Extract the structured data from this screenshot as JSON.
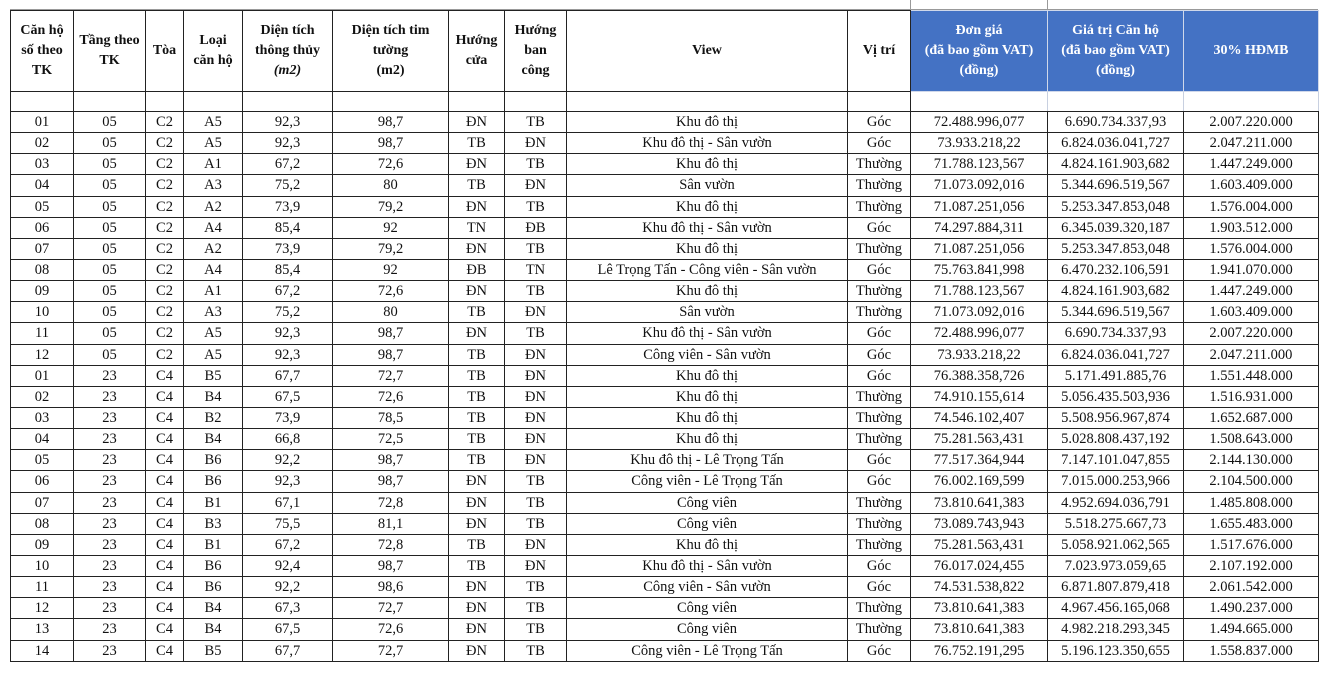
{
  "header": {
    "columns": [
      [
        "Căn hộ",
        "số theo",
        "TK"
      ],
      [
        "Tầng theo",
        "TK"
      ],
      [
        "Tòa"
      ],
      [
        "Loại",
        "căn hộ"
      ],
      [
        "Diện tích",
        "thông thủy",
        "(m2)"
      ],
      [
        "Diện tích tim",
        "tường",
        "(m2)"
      ],
      [
        "Hướng",
        "cửa"
      ],
      [
        "Hướng",
        "ban",
        "công"
      ],
      [
        "View"
      ],
      [
        "Vị trí"
      ],
      [
        "Đơn giá",
        "(đã bao gồm VAT)",
        "(đồng)"
      ],
      [
        "Giá trị Căn hộ",
        "(đã bao gồm VAT)",
        "(đồng)"
      ],
      [
        "30% HĐMB"
      ]
    ]
  },
  "table": {
    "rows": [
      [
        "01",
        "05",
        "C2",
        "A5",
        "92,3",
        "98,7",
        "ĐN",
        "TB",
        "Khu đô thị",
        "Góc",
        "72.488.996,077",
        "6.690.734.337,93",
        "2.007.220.000"
      ],
      [
        "02",
        "05",
        "C2",
        "A5",
        "92,3",
        "98,7",
        "TB",
        "ĐN",
        "Khu đô thị - Sân vườn",
        "Góc",
        "73.933.218,22",
        "6.824.036.041,727",
        "2.047.211.000"
      ],
      [
        "03",
        "05",
        "C2",
        "A1",
        "67,2",
        "72,6",
        "ĐN",
        "TB",
        "Khu đô thị",
        "Thường",
        "71.788.123,567",
        "4.824.161.903,682",
        "1.447.249.000"
      ],
      [
        "04",
        "05",
        "C2",
        "A3",
        "75,2",
        "80",
        "TB",
        "ĐN",
        "Sân vườn",
        "Thường",
        "71.073.092,016",
        "5.344.696.519,567",
        "1.603.409.000"
      ],
      [
        "05",
        "05",
        "C2",
        "A2",
        "73,9",
        "79,2",
        "ĐN",
        "TB",
        "Khu đô thị",
        "Thường",
        "71.087.251,056",
        "5.253.347.853,048",
        "1.576.004.000"
      ],
      [
        "06",
        "05",
        "C2",
        "A4",
        "85,4",
        "92",
        "TN",
        "ĐB",
        "Khu đô thị - Sân vườn",
        "Góc",
        "74.297.884,311",
        "6.345.039.320,187",
        "1.903.512.000"
      ],
      [
        "07",
        "05",
        "C2",
        "A2",
        "73,9",
        "79,2",
        "ĐN",
        "TB",
        "Khu đô thị",
        "Thường",
        "71.087.251,056",
        "5.253.347.853,048",
        "1.576.004.000"
      ],
      [
        "08",
        "05",
        "C2",
        "A4",
        "85,4",
        "92",
        "ĐB",
        "TN",
        "Lê Trọng Tấn - Công viên - Sân vườn",
        "Góc",
        "75.763.841,998",
        "6.470.232.106,591",
        "1.941.070.000"
      ],
      [
        "09",
        "05",
        "C2",
        "A1",
        "67,2",
        "72,6",
        "ĐN",
        "TB",
        "Khu đô thị",
        "Thường",
        "71.788.123,567",
        "4.824.161.903,682",
        "1.447.249.000"
      ],
      [
        "10",
        "05",
        "C2",
        "A3",
        "75,2",
        "80",
        "TB",
        "ĐN",
        "Sân vườn",
        "Thường",
        "71.073.092,016",
        "5.344.696.519,567",
        "1.603.409.000"
      ],
      [
        "11",
        "05",
        "C2",
        "A5",
        "92,3",
        "98,7",
        "ĐN",
        "TB",
        "Khu đô thị - Sân vườn",
        "Góc",
        "72.488.996,077",
        "6.690.734.337,93",
        "2.007.220.000"
      ],
      [
        "12",
        "05",
        "C2",
        "A5",
        "92,3",
        "98,7",
        "TB",
        "ĐN",
        "Công viên - Sân vườn",
        "Góc",
        "73.933.218,22",
        "6.824.036.041,727",
        "2.047.211.000"
      ],
      [
        "01",
        "23",
        "C4",
        "B5",
        "67,7",
        "72,7",
        "TB",
        "ĐN",
        "Khu đô thị",
        "Góc",
        "76.388.358,726",
        "5.171.491.885,76",
        "1.551.448.000"
      ],
      [
        "02",
        "23",
        "C4",
        "B4",
        "67,5",
        "72,6",
        "TB",
        "ĐN",
        "Khu đô thị",
        "Thường",
        "74.910.155,614",
        "5.056.435.503,936",
        "1.516.931.000"
      ],
      [
        "03",
        "23",
        "C4",
        "B2",
        "73,9",
        "78,5",
        "TB",
        "ĐN",
        "Khu đô thị",
        "Thường",
        "74.546.102,407",
        "5.508.956.967,874",
        "1.652.687.000"
      ],
      [
        "04",
        "23",
        "C4",
        "B4",
        "66,8",
        "72,5",
        "TB",
        "ĐN",
        "Khu đô thị",
        "Thường",
        "75.281.563,431",
        "5.028.808.437,192",
        "1.508.643.000"
      ],
      [
        "05",
        "23",
        "C4",
        "B6",
        "92,2",
        "98,7",
        "TB",
        "ĐN",
        "Khu đô thị - Lê Trọng Tấn",
        "Góc",
        "77.517.364,944",
        "7.147.101.047,855",
        "2.144.130.000"
      ],
      [
        "06",
        "23",
        "C4",
        "B6",
        "92,3",
        "98,7",
        "ĐN",
        "TB",
        "Công viên - Lê Trọng Tấn",
        "Góc",
        "76.002.169,599",
        "7.015.000.253,966",
        "2.104.500.000"
      ],
      [
        "07",
        "23",
        "C4",
        "B1",
        "67,1",
        "72,8",
        "ĐN",
        "TB",
        "Công viên",
        "Thường",
        "73.810.641,383",
        "4.952.694.036,791",
        "1.485.808.000"
      ],
      [
        "08",
        "23",
        "C4",
        "B3",
        "75,5",
        "81,1",
        "ĐN",
        "TB",
        "Công viên",
        "Thường",
        "73.089.743,943",
        "5.518.275.667,73",
        "1.655.483.000"
      ],
      [
        "09",
        "23",
        "C4",
        "B1",
        "67,2",
        "72,8",
        "TB",
        "ĐN",
        "Khu đô thị",
        "Thường",
        "75.281.563,431",
        "5.058.921.062,565",
        "1.517.676.000"
      ],
      [
        "10",
        "23",
        "C4",
        "B6",
        "92,4",
        "98,7",
        "TB",
        "ĐN",
        "Khu đô thị - Sân vườn",
        "Góc",
        "76.017.024,455",
        "7.023.973.059,65",
        "2.107.192.000"
      ],
      [
        "11",
        "23",
        "C4",
        "B6",
        "92,2",
        "98,6",
        "ĐN",
        "TB",
        "Công viên - Sân vườn",
        "Góc",
        "74.531.538,822",
        "6.871.807.879,418",
        "2.061.542.000"
      ],
      [
        "12",
        "23",
        "C4",
        "B4",
        "67,3",
        "72,7",
        "ĐN",
        "TB",
        "Công viên",
        "Thường",
        "73.810.641,383",
        "4.967.456.165,068",
        "1.490.237.000"
      ],
      [
        "13",
        "23",
        "C4",
        "B4",
        "67,5",
        "72,6",
        "ĐN",
        "TB",
        "Công viên",
        "Thường",
        "73.810.641,383",
        "4.982.218.293,345",
        "1.494.665.000"
      ],
      [
        "14",
        "23",
        "C4",
        "B5",
        "67,7",
        "72,7",
        "ĐN",
        "TB",
        "Công viên - Lê Trọng Tấn",
        "Góc",
        "76.752.191,295",
        "5.196.123.350,655",
        "1.558.837.000"
      ]
    ]
  }
}
